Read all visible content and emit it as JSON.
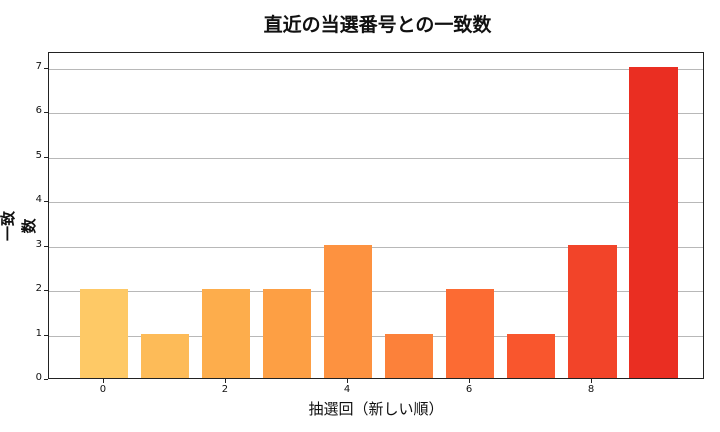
{
  "chart_data": {
    "type": "bar",
    "title": "直近の当選番号との一致数",
    "xlabel": "抽選回（新しい順）",
    "ylabel": "一致数",
    "categories": [
      0,
      1,
      2,
      3,
      4,
      5,
      6,
      7,
      8,
      9
    ],
    "values": [
      2,
      1,
      2,
      2,
      3,
      1,
      2,
      1,
      3,
      7
    ],
    "colors": [
      "#fec966",
      "#fdbb58",
      "#fdad4c",
      "#fd9f44",
      "#fd9240",
      "#fc813a",
      "#fc6b33",
      "#f9562d",
      "#f24429",
      "#ea2e22"
    ],
    "ylim": [
      0,
      7.35
    ],
    "yticks": [
      0,
      1,
      2,
      3,
      4,
      5,
      6,
      7
    ],
    "xticks": [
      0,
      2,
      4,
      6,
      8
    ],
    "grid": "y",
    "legend": null
  }
}
